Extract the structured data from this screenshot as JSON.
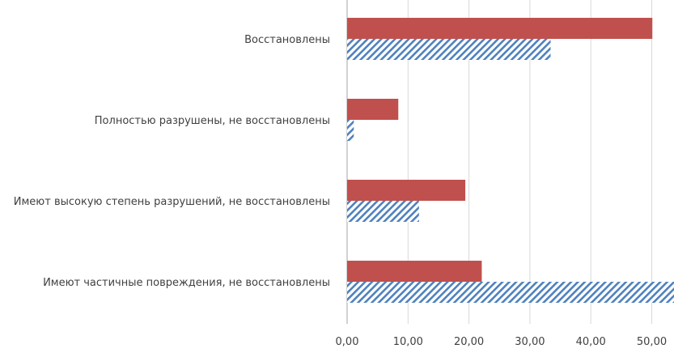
{
  "chart_data": {
    "type": "bar",
    "orientation": "horizontal",
    "categories": [
      "Восстановлены",
      "Полностью разрушены, не восстановлены",
      "Имеют высокую степень разрушений, не восстановлены",
      "Имеют частичные повреждения, не восстановлены"
    ],
    "series": [
      {
        "values": [
          50.1,
          8.4,
          19.4,
          22.1
        ],
        "color": "#c0504d",
        "pattern": "solid"
      },
      {
        "values": [
          33.4,
          1.1,
          11.8,
          54.0
        ],
        "color": "#4f81bd",
        "pattern": "diagonal-hatch"
      }
    ],
    "xticks": [
      "0,00",
      "10,00",
      "20,00",
      "30,00",
      "40,00",
      "50,00"
    ],
    "xlim": [
      0,
      55
    ],
    "grid": "vertical",
    "title": "",
    "xlabel": "",
    "ylabel": ""
  }
}
